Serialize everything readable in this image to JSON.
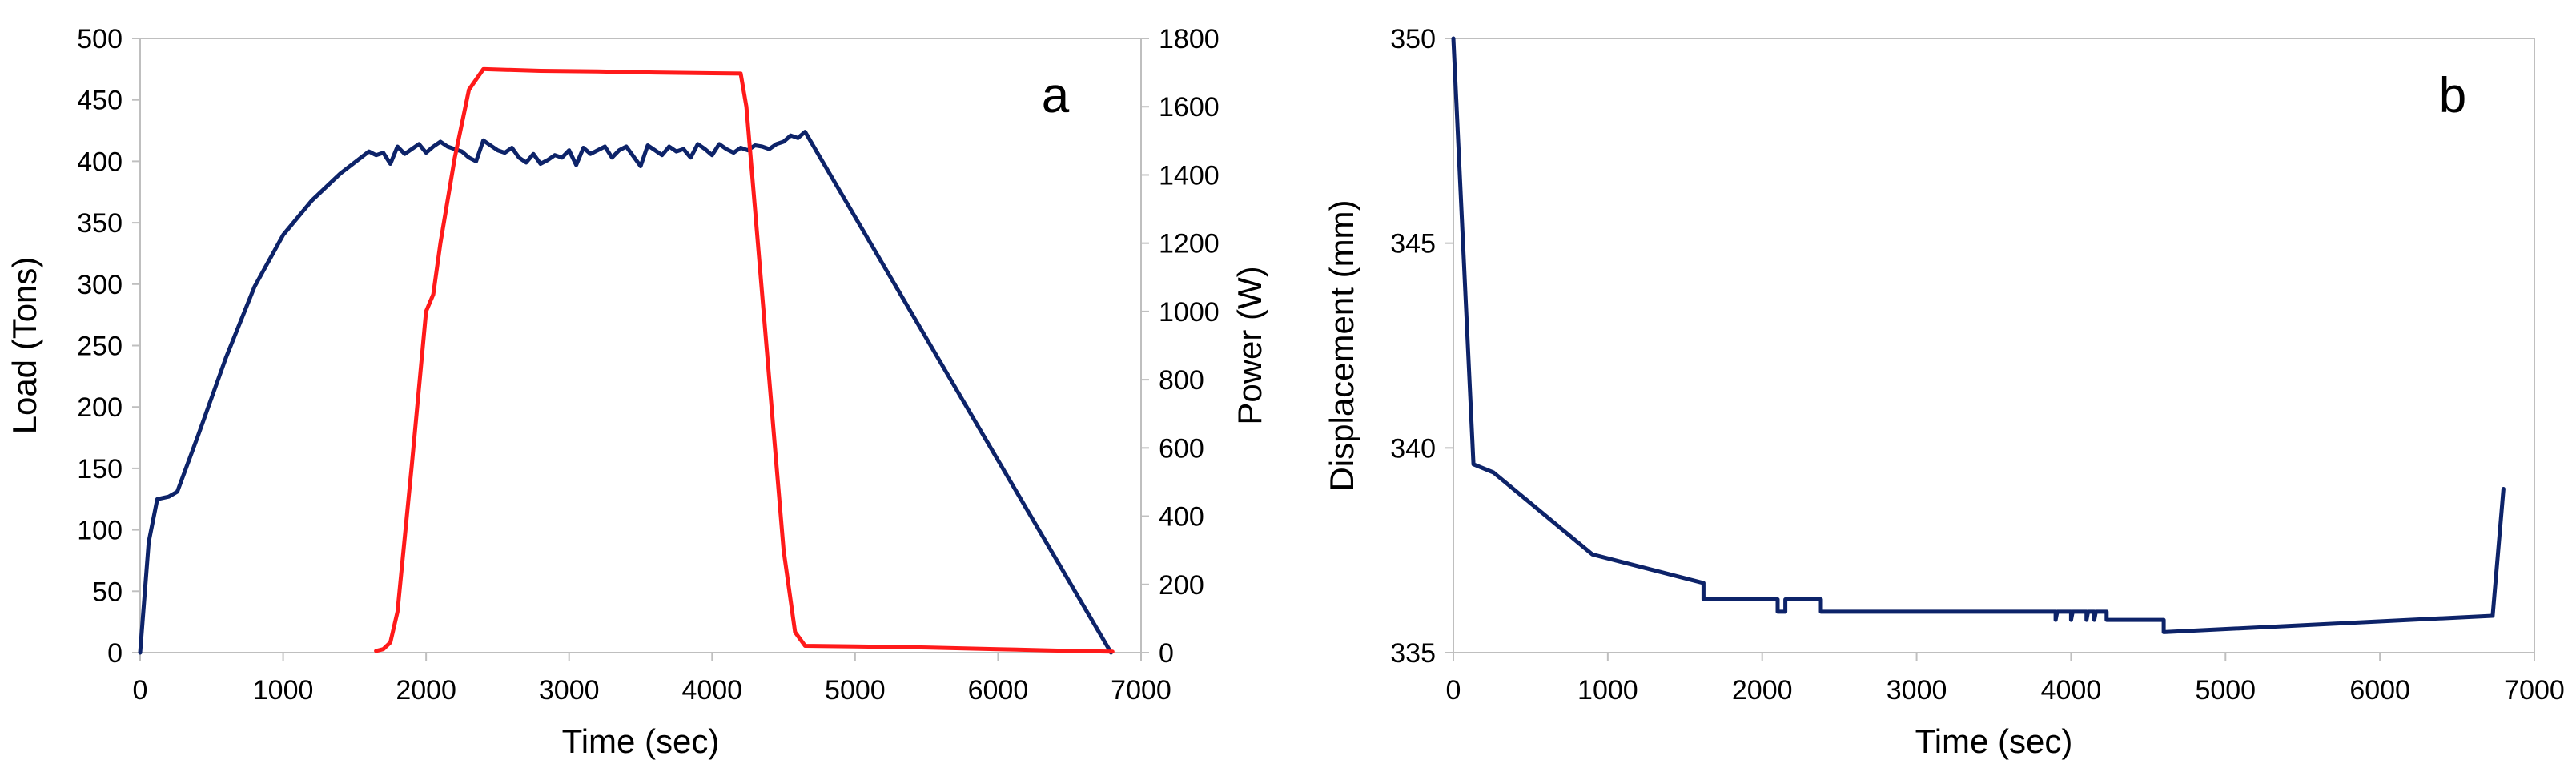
{
  "chart_data": [
    {
      "type": "line",
      "panel_label": "a",
      "xlabel": "Time (sec)",
      "ylabel": "Load (Tons)",
      "y2label": "Power (W)",
      "xlim": [
        0,
        7000
      ],
      "ylim": [
        0,
        500
      ],
      "y2lim": [
        0,
        1800
      ],
      "xticks": [
        0,
        1000,
        2000,
        3000,
        4000,
        5000,
        6000,
        7000
      ],
      "yticks": [
        0,
        50,
        100,
        150,
        200,
        250,
        300,
        350,
        400,
        450,
        500
      ],
      "y2ticks": [
        0,
        200,
        400,
        600,
        800,
        1000,
        1200,
        1400,
        1600,
        1800
      ],
      "grid": false,
      "series": [
        {
          "name": "Load",
          "axis": "left",
          "color": "#0d2369",
          "x": [
            0,
            60,
            120,
            200,
            260,
            400,
            600,
            800,
            1000,
            1200,
            1400,
            1600,
            1650,
            1700,
            1750,
            1800,
            1850,
            1900,
            1950,
            2000,
            2050,
            2100,
            2150,
            2200,
            2250,
            2300,
            2350,
            2400,
            2450,
            2500,
            2550,
            2600,
            2650,
            2700,
            2750,
            2800,
            2850,
            2900,
            2950,
            3000,
            3050,
            3100,
            3150,
            3200,
            3250,
            3300,
            3350,
            3400,
            3450,
            3500,
            3550,
            3600,
            3650,
            3700,
            3750,
            3800,
            3850,
            3900,
            3950,
            4000,
            4050,
            4100,
            4150,
            4200,
            4250,
            4300,
            4350,
            4400,
            4450,
            4500,
            4550,
            4600,
            4650,
            6790
          ],
          "y": [
            0,
            90,
            125,
            127,
            131,
            175,
            240,
            298,
            340,
            368,
            390,
            408,
            405,
            407,
            398,
            412,
            406,
            410,
            414,
            407,
            412,
            416,
            412,
            410,
            408,
            403,
            400,
            417,
            413,
            409,
            407,
            411,
            403,
            399,
            406,
            398,
            401,
            405,
            403,
            409,
            397,
            411,
            406,
            409,
            412,
            403,
            409,
            412,
            404,
            396,
            413,
            409,
            405,
            412,
            408,
            410,
            403,
            414,
            410,
            405,
            414,
            410,
            407,
            411,
            409,
            413,
            412,
            410,
            414,
            416,
            421,
            419,
            424,
            0
          ]
        },
        {
          "name": "Power",
          "axis": "right",
          "color": "#ff1a1a",
          "x": [
            1650,
            1700,
            1750,
            1800,
            1900,
            2000,
            2050,
            2100,
            2200,
            2300,
            2400,
            2410,
            2800,
            3200,
            3600,
            4000,
            4200,
            4240,
            4300,
            4400,
            4500,
            4580,
            4650,
            5000,
            5500,
            6000,
            6500,
            6800
          ],
          "y": [
            5,
            10,
            30,
            120,
            550,
            1000,
            1050,
            1200,
            1450,
            1650,
            1710,
            1710,
            1705,
            1703,
            1700,
            1698,
            1697,
            1600,
            1300,
            800,
            300,
            60,
            20,
            18,
            15,
            10,
            5,
            3
          ]
        }
      ]
    },
    {
      "type": "line",
      "panel_label": "b",
      "xlabel": "Time (sec)",
      "ylabel": "Displacement (mm)",
      "xlim": [
        0,
        7000
      ],
      "ylim": [
        335,
        350
      ],
      "xticks": [
        0,
        1000,
        2000,
        3000,
        4000,
        5000,
        6000,
        7000
      ],
      "yticks": [
        335,
        340,
        345,
        350
      ],
      "grid": false,
      "series": [
        {
          "name": "Displacement",
          "color": "#0d2369",
          "x": [
            0,
            130,
            260,
            900,
            1620,
            1620,
            2100,
            2100,
            2150,
            2150,
            2380,
            2380,
            3900,
            3900,
            3910,
            4000,
            4000,
            4010,
            4100,
            4100,
            4110,
            4150,
            4150,
            4160,
            4230,
            4230,
            4600,
            4600,
            6730,
            6800
          ],
          "y": [
            350,
            339.6,
            339.4,
            337.4,
            336.7,
            336.3,
            336.3,
            336.0,
            336.0,
            336.3,
            336.3,
            336.0,
            336.0,
            335.8,
            336.0,
            336.0,
            335.8,
            336.0,
            336.0,
            335.8,
            336.0,
            336.0,
            335.8,
            336.0,
            336.0,
            335.8,
            335.8,
            335.5,
            335.9,
            339.0
          ]
        }
      ]
    }
  ]
}
